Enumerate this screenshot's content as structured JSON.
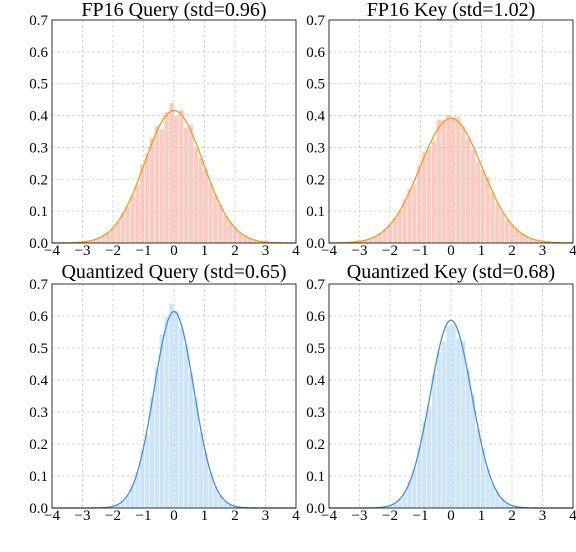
{
  "chart_data": [
    {
      "type": "bar",
      "title": "FP16 Query (std=0.96)",
      "std": 0.96,
      "xlim": [
        -4,
        4
      ],
      "ylim": [
        0,
        0.7
      ],
      "xticks": [
        -4,
        -3,
        -2,
        -1,
        0,
        1,
        2,
        3,
        4
      ],
      "xtick_labels": [
        "−4",
        "−3",
        "−2",
        "−1",
        "0",
        "1",
        "2",
        "3",
        "4"
      ],
      "yticks": [
        0,
        0.1,
        0.2,
        0.3,
        0.4,
        0.5,
        0.6,
        0.7
      ],
      "ytick_labels": [
        "0.0",
        "0.1",
        "0.2",
        "0.3",
        "0.4",
        "0.5",
        "0.6",
        "0.7"
      ],
      "grid": true,
      "colors": {
        "bars": "#f9b8ac",
        "curve": "#f59a23"
      }
    },
    {
      "type": "bar",
      "title": "FP16 Key (std=1.02)",
      "std": 1.02,
      "xlim": [
        -4,
        4
      ],
      "ylim": [
        0,
        0.7
      ],
      "xticks": [
        -4,
        -3,
        -2,
        -1,
        0,
        1,
        2,
        3,
        4
      ],
      "xtick_labels": [
        "−4",
        "−3",
        "−2",
        "−1",
        "0",
        "1",
        "2",
        "3",
        "4"
      ],
      "yticks": [
        0,
        0.1,
        0.2,
        0.3,
        0.4,
        0.5,
        0.6,
        0.7
      ],
      "ytick_labels": [
        "0.0",
        "0.1",
        "0.2",
        "0.3",
        "0.4",
        "0.5",
        "0.6",
        "0.7"
      ],
      "grid": true,
      "colors": {
        "bars": "#f9b8ac",
        "curve": "#f59a23"
      }
    },
    {
      "type": "bar",
      "title": "Quantized Query (std=0.65)",
      "std": 0.65,
      "xlim": [
        -4,
        4
      ],
      "ylim": [
        0,
        0.7
      ],
      "xticks": [
        -4,
        -3,
        -2,
        -1,
        0,
        1,
        2,
        3,
        4
      ],
      "xtick_labels": [
        "−4",
        "−3",
        "−2",
        "−1",
        "0",
        "1",
        "2",
        "3",
        "4"
      ],
      "yticks": [
        0,
        0.1,
        0.2,
        0.3,
        0.4,
        0.5,
        0.6,
        0.7
      ],
      "ytick_labels": [
        "0.0",
        "0.1",
        "0.2",
        "0.3",
        "0.4",
        "0.5",
        "0.6",
        "0.7"
      ],
      "grid": true,
      "colors": {
        "bars": "#bcdcf7",
        "curve": "#4a8fd4"
      }
    },
    {
      "type": "bar",
      "title": "Quantized Key (std=0.68)",
      "std": 0.68,
      "xlim": [
        -4,
        4
      ],
      "ylim": [
        0,
        0.7
      ],
      "xticks": [
        -4,
        -3,
        -2,
        -1,
        0,
        1,
        2,
        3,
        4
      ],
      "xtick_labels": [
        "−4",
        "−3",
        "−2",
        "−1",
        "0",
        "1",
        "2",
        "3",
        "4"
      ],
      "yticks": [
        0,
        0.1,
        0.2,
        0.3,
        0.4,
        0.5,
        0.6,
        0.7
      ],
      "ytick_labels": [
        "0.0",
        "0.1",
        "0.2",
        "0.3",
        "0.4",
        "0.5",
        "0.6",
        "0.7"
      ],
      "grid": true,
      "colors": {
        "bars": "#bcdcf7",
        "curve": "#4a8fd4"
      }
    }
  ]
}
